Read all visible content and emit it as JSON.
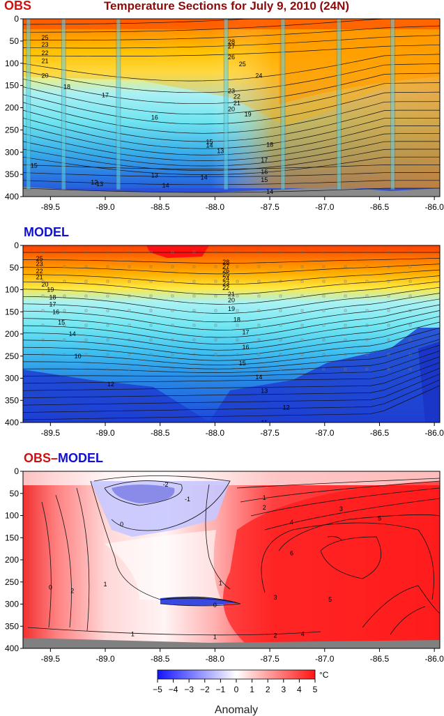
{
  "figure": {
    "title": "Temperature Sections for July 9, 2010 (24N)",
    "title_color": "#8b0a0a"
  },
  "chart_data": [
    {
      "type": "heatmap",
      "panel_label": "OBS",
      "panel_label_color": "#d01010",
      "x_ticks": [
        -89.5,
        -89.0,
        -88.5,
        -88.0,
        -87.5,
        -87.0,
        -86.5,
        -86.0
      ],
      "x_tick_labels": [
        "-89.5",
        "-89.0",
        "-88.5",
        "-88.0",
        "-87.5",
        "-87.0",
        "-86.5",
        "-86.0"
      ],
      "xlim": [
        -89.75,
        -85.95
      ],
      "y_ticks": [
        0,
        50,
        100,
        150,
        200,
        250,
        300,
        350,
        400
      ],
      "y_tick_labels": [
        "0",
        "50",
        "100",
        "150",
        "200",
        "250",
        "300",
        "350",
        "400"
      ],
      "ylim": [
        0,
        400
      ],
      "y_inverted": true,
      "station_longitudes": [
        -89.7,
        -89.38,
        -88.88,
        -87.9,
        -87.38,
        -86.87,
        -86.38
      ],
      "contour_labels": [
        {
          "text": "25",
          "x": -89.55,
          "y": 42
        },
        {
          "text": "23",
          "x": -89.55,
          "y": 58
        },
        {
          "text": "22",
          "x": -89.55,
          "y": 77
        },
        {
          "text": "21",
          "x": -89.55,
          "y": 95
        },
        {
          "text": "20",
          "x": -89.55,
          "y": 128
        },
        {
          "text": "18",
          "x": -89.35,
          "y": 153
        },
        {
          "text": "17",
          "x": -89.0,
          "y": 172
        },
        {
          "text": "16",
          "x": -88.55,
          "y": 222
        },
        {
          "text": "28",
          "x": -87.85,
          "y": 52
        },
        {
          "text": "27",
          "x": -87.85,
          "y": 62
        },
        {
          "text": "26",
          "x": -87.85,
          "y": 86
        },
        {
          "text": "25",
          "x": -87.75,
          "y": 102
        },
        {
          "text": "24",
          "x": -87.6,
          "y": 128
        },
        {
          "text": "23",
          "x": -87.85,
          "y": 162
        },
        {
          "text": "22",
          "x": -87.8,
          "y": 175
        },
        {
          "text": "21",
          "x": -87.8,
          "y": 190
        },
        {
          "text": "20",
          "x": -87.85,
          "y": 203
        },
        {
          "text": "19",
          "x": -87.7,
          "y": 215
        },
        {
          "text": "15",
          "x": -88.05,
          "y": 277
        },
        {
          "text": "14",
          "x": -88.05,
          "y": 285
        },
        {
          "text": "13",
          "x": -87.95,
          "y": 297
        },
        {
          "text": "18",
          "x": -87.5,
          "y": 283
        },
        {
          "text": "17",
          "x": -87.55,
          "y": 318
        },
        {
          "text": "16",
          "x": -87.55,
          "y": 344
        },
        {
          "text": "14",
          "x": -88.1,
          "y": 357
        },
        {
          "text": "15",
          "x": -87.55,
          "y": 362
        },
        {
          "text": "13",
          "x": -88.55,
          "y": 352
        },
        {
          "text": "14",
          "x": -88.45,
          "y": 375
        },
        {
          "text": "12",
          "x": -89.1,
          "y": 368
        },
        {
          "text": "13",
          "x": -89.05,
          "y": 372
        },
        {
          "text": "15",
          "x": -89.65,
          "y": 330
        },
        {
          "text": "14",
          "x": -87.5,
          "y": 389
        }
      ]
    },
    {
      "type": "heatmap",
      "panel_label": "MODEL",
      "panel_label_color": "#1010d0",
      "x_ticks": [
        -89.5,
        -89.0,
        -88.5,
        -88.0,
        -87.5,
        -87.0,
        -86.5,
        -86.0
      ],
      "x_tick_labels": [
        "-89.5",
        "-89.0",
        "-88.5",
        "-88.0",
        "-87.5",
        "-87.0",
        "-86.5",
        "-86.0"
      ],
      "xlim": [
        -89.75,
        -85.95
      ],
      "y_ticks": [
        0,
        50,
        100,
        150,
        200,
        250,
        300,
        350,
        400
      ],
      "y_tick_labels": [
        "0",
        "50",
        "100",
        "150",
        "200",
        "250",
        "300",
        "350",
        "400"
      ],
      "ylim": [
        0,
        400
      ],
      "y_inverted": true,
      "contour_labels": [
        {
          "text": "25",
          "x": -89.6,
          "y": 30
        },
        {
          "text": "23",
          "x": -89.6,
          "y": 42
        },
        {
          "text": "22",
          "x": -89.6,
          "y": 58
        },
        {
          "text": "21",
          "x": -89.6,
          "y": 72
        },
        {
          "text": "20",
          "x": -89.55,
          "y": 88
        },
        {
          "text": "19",
          "x": -89.5,
          "y": 100
        },
        {
          "text": "18",
          "x": -89.48,
          "y": 117
        },
        {
          "text": "17",
          "x": -89.48,
          "y": 133
        },
        {
          "text": "16",
          "x": -89.45,
          "y": 150
        },
        {
          "text": "15",
          "x": -89.4,
          "y": 174
        },
        {
          "text": "14",
          "x": -89.3,
          "y": 200
        },
        {
          "text": "10",
          "x": -89.25,
          "y": 250
        },
        {
          "text": "12",
          "x": -88.95,
          "y": 313
        },
        {
          "text": "28",
          "x": -87.9,
          "y": 38
        },
        {
          "text": "27",
          "x": -87.9,
          "y": 48
        },
        {
          "text": "26",
          "x": -87.9,
          "y": 57
        },
        {
          "text": "25",
          "x": -87.9,
          "y": 65
        },
        {
          "text": "24",
          "x": -87.9,
          "y": 75
        },
        {
          "text": "23",
          "x": -87.9,
          "y": 86
        },
        {
          "text": "22",
          "x": -87.9,
          "y": 96
        },
        {
          "text": "21",
          "x": -87.85,
          "y": 110
        },
        {
          "text": "20",
          "x": -87.85,
          "y": 124
        },
        {
          "text": "19",
          "x": -87.85,
          "y": 143
        },
        {
          "text": "18",
          "x": -87.8,
          "y": 168
        },
        {
          "text": "17",
          "x": -87.72,
          "y": 196
        },
        {
          "text": "16",
          "x": -87.72,
          "y": 230
        },
        {
          "text": "15",
          "x": -87.75,
          "y": 266
        },
        {
          "text": "14",
          "x": -87.6,
          "y": 298
        },
        {
          "text": "13",
          "x": -87.55,
          "y": 328
        },
        {
          "text": "12",
          "x": -87.35,
          "y": 366
        },
        {
          "text": "11",
          "x": -87.55,
          "y": 400
        }
      ]
    },
    {
      "type": "heatmap",
      "panel_label_obs": "OBS",
      "panel_label_sep": "–",
      "panel_label_model": "MODEL",
      "panel_label_obs_color": "#d01010",
      "panel_label_model_color": "#1010d0",
      "x_ticks": [
        -89.5,
        -89.0,
        -88.5,
        -88.0,
        -87.5,
        -87.0,
        -86.5,
        -86.0
      ],
      "x_tick_labels": [
        "-89.5",
        "-89.0",
        "-88.5",
        "-88.0",
        "-87.5",
        "-87.0",
        "-86.5",
        "-86.0"
      ],
      "xlim": [
        -89.75,
        -85.95
      ],
      "y_ticks": [
        0,
        50,
        100,
        150,
        200,
        250,
        300,
        350,
        400
      ],
      "y_tick_labels": [
        "0",
        "50",
        "100",
        "150",
        "200",
        "250",
        "300",
        "350",
        "400"
      ],
      "ylim": [
        0,
        400
      ],
      "y_inverted": true,
      "contour_labels": [
        {
          "text": "-2",
          "x": -88.45,
          "y": 30
        },
        {
          "text": "-1",
          "x": -88.25,
          "y": 63
        },
        {
          "text": "0",
          "x": -88.85,
          "y": 120
        },
        {
          "text": "1",
          "x": -87.55,
          "y": 60
        },
        {
          "text": "2",
          "x": -87.55,
          "y": 82
        },
        {
          "text": "3",
          "x": -86.85,
          "y": 85
        },
        {
          "text": "4",
          "x": -87.3,
          "y": 115
        },
        {
          "text": "5",
          "x": -86.5,
          "y": 106
        },
        {
          "text": "6",
          "x": -87.3,
          "y": 185
        },
        {
          "text": "1",
          "x": -87.95,
          "y": 253
        },
        {
          "text": "3",
          "x": -87.45,
          "y": 285
        },
        {
          "text": "5",
          "x": -86.95,
          "y": 290
        },
        {
          "text": "0",
          "x": -89.5,
          "y": 262
        },
        {
          "text": "2",
          "x": -89.3,
          "y": 270
        },
        {
          "text": "1",
          "x": -89.0,
          "y": 255
        },
        {
          "text": "0",
          "x": -88.0,
          "y": 302
        },
        {
          "text": "1",
          "x": -88.75,
          "y": 368
        },
        {
          "text": "1",
          "x": -88.0,
          "y": 374
        },
        {
          "text": "2",
          "x": -87.45,
          "y": 371
        },
        {
          "text": "4",
          "x": -87.2,
          "y": 368
        }
      ]
    }
  ],
  "colorbar": {
    "ticks": [
      -5,
      -4,
      -3,
      -2,
      -1,
      0,
      1,
      2,
      3,
      4,
      5
    ],
    "tick_labels": [
      "−5",
      "−4",
      "−3",
      "−2",
      "−1",
      "0",
      "1",
      "2",
      "3",
      "4",
      "5"
    ],
    "unit": "°C",
    "label": "Anomaly",
    "range": [
      -5,
      5
    ]
  }
}
